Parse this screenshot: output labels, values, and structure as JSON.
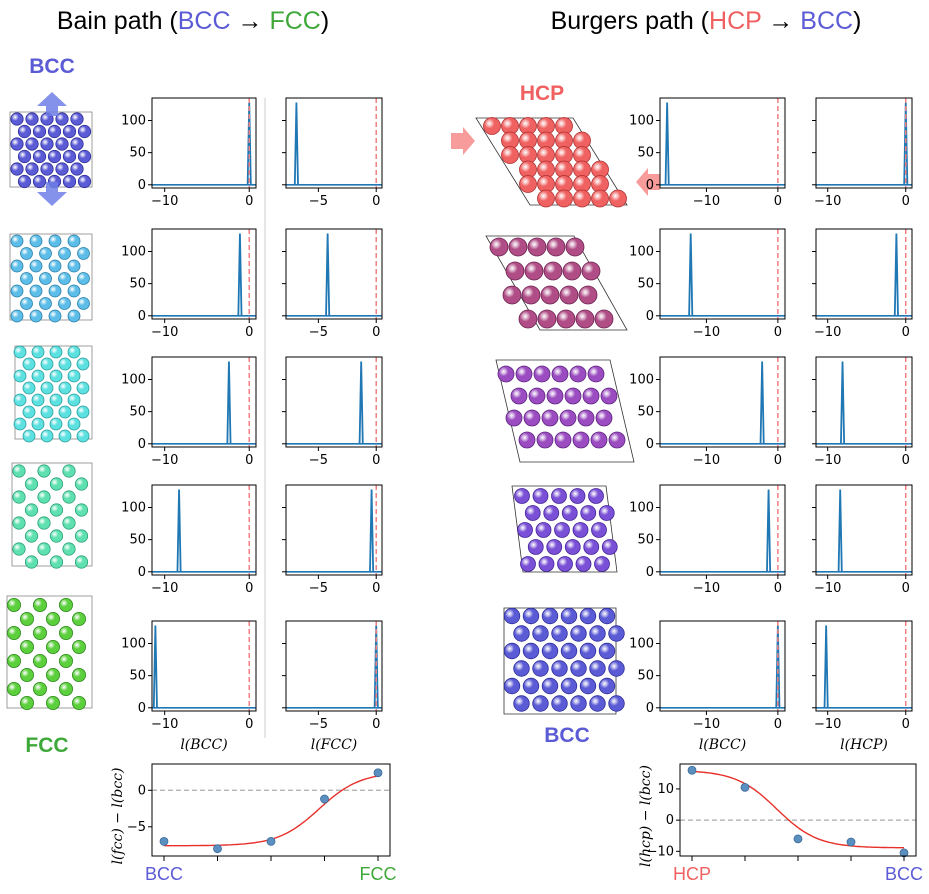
{
  "colors": {
    "bcc": "#5b5bd6",
    "fcc": "#3fa83a",
    "hcp": "#f06060",
    "line": "#1f77b4",
    "ref": "#f08080",
    "fit": "#e8302a",
    "point": "#5a8fc0"
  },
  "titles": {
    "left": {
      "prefix": "Bain path (",
      "from": "BCC",
      "arrow": " → ",
      "to": "FCC",
      "suffix": ")"
    },
    "right": {
      "prefix": "Burgers path (",
      "from": "HCP",
      "arrow": " → ",
      "to": "BCC",
      "suffix": ")"
    }
  },
  "labels": {
    "bcc_top": "BCC",
    "fcc_bottom": "FCC",
    "hcp_top": "HCP",
    "bcc_bottom": "BCC"
  },
  "structures": {
    "bain": [
      {
        "color": "#5b5bd6",
        "edge": "#2d2d9a"
      },
      {
        "color": "#5cbde8",
        "edge": "#2b7fa8"
      },
      {
        "color": "#5ce0e0",
        "edge": "#2a9e9e"
      },
      {
        "color": "#5ee0b0",
        "edge": "#2aa078"
      },
      {
        "color": "#5ccf3c",
        "edge": "#2e8a1e"
      }
    ],
    "burgers": [
      {
        "color": "#f06262",
        "edge": "#b03030"
      },
      {
        "color": "#b04c86",
        "edge": "#6e2450"
      },
      {
        "color": "#9a4cc0",
        "edge": "#5e2480"
      },
      {
        "color": "#7a50d6",
        "edge": "#45259a"
      },
      {
        "color": "#5b5bd6",
        "edge": "#2d2d9a"
      }
    ]
  },
  "chart_data": [
    {
      "type": "line",
      "panel": "bain-l-bcc",
      "xlabel": "l(BCC)",
      "xticks": [
        -10,
        0
      ],
      "yticks": [
        0,
        50,
        100
      ],
      "xlim": [
        -11.5,
        0.8
      ],
      "ylim": [
        -5,
        135
      ],
      "peaks": [
        0,
        -1.1,
        -2.4,
        -8.3,
        -11.1
      ],
      "ref_x": 0
    },
    {
      "type": "line",
      "panel": "bain-l-fcc",
      "xlabel": "l(FCC)",
      "xticks": [
        -5,
        0
      ],
      "yticks": [],
      "xlim": [
        -7.8,
        0.5
      ],
      "ylim": [
        -5,
        135
      ],
      "peaks": [
        -6.9,
        -4.2,
        -1.3,
        -0.4,
        0
      ],
      "ref_x": 0
    },
    {
      "type": "line",
      "panel": "burgers-l-bcc",
      "xlabel": "l(BCC)",
      "xticks": [
        -10,
        0
      ],
      "yticks": [
        0,
        50,
        100
      ],
      "xlim": [
        -16.5,
        1
      ],
      "ylim": [
        -5,
        135
      ],
      "peaks": [
        -15.5,
        -12.2,
        -2.2,
        -1.3,
        0
      ],
      "ref_x": 0
    },
    {
      "type": "line",
      "panel": "burgers-l-hcp",
      "xlabel": "l(HCP)",
      "xticks": [
        -10,
        0
      ],
      "yticks": [],
      "xlim": [
        -11.5,
        0.8
      ],
      "ylim": [
        -5,
        135
      ],
      "peaks": [
        0,
        -1.2,
        -8.1,
        -8.4,
        -10.2
      ],
      "ref_x": 0
    },
    {
      "type": "scatter",
      "panel": "bain-summary",
      "ylabel": "l(fcc) − l(bcc)",
      "categories": [
        "BCC",
        "",
        "",
        "",
        "FCC"
      ],
      "x": [
        0,
        1,
        2,
        3,
        4
      ],
      "values": [
        -7.0,
        -8.0,
        -7.0,
        -1.2,
        2.4
      ],
      "yticks": [
        -5,
        0
      ],
      "ylim": [
        -9,
        3.6
      ],
      "fit": "sigmoid"
    },
    {
      "type": "scatter",
      "panel": "burgers-summary",
      "ylabel": "l(hcp) − l(bcc)",
      "categories": [
        "HCP",
        "",
        "",
        "",
        "BCC"
      ],
      "x": [
        0,
        1,
        2,
        3,
        4
      ],
      "values": [
        16,
        10.5,
        -6,
        -7,
        -10.5
      ],
      "yticks": [
        -10,
        0,
        10
      ],
      "ylim": [
        -11.5,
        18
      ],
      "fit": "sigmoid"
    }
  ]
}
